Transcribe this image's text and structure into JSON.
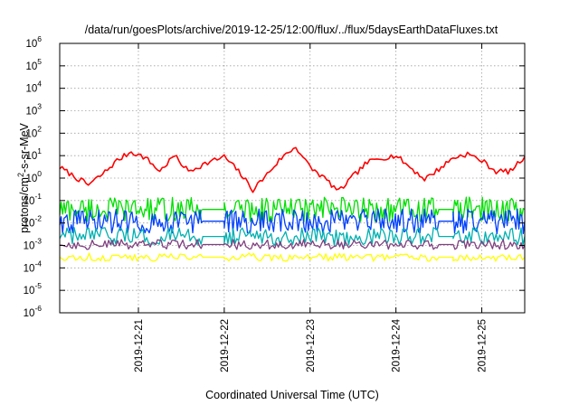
{
  "chart_data": {
    "type": "line",
    "title": "/data/run/goesPlots/archive/2019-12-25/12:00/flux/../flux/5daysEarthDataFluxes.txt",
    "xlabel": "Coordinated Universal Time (UTC)",
    "ylabel": "protons/cm2-s-sr-MeV",
    "ylabel_parts": {
      "pre": "protons/cm",
      "sup": "2",
      "post": "-s-sr-MeV"
    },
    "yscale": "log",
    "ylim": [
      1e-06,
      1000000.0
    ],
    "yticks": [
      {
        "v": 1000000.0,
        "base": "10",
        "exp": "6"
      },
      {
        "v": 100000.0,
        "base": "10",
        "exp": "5"
      },
      {
        "v": 10000.0,
        "base": "10",
        "exp": "4"
      },
      {
        "v": 1000.0,
        "base": "10",
        "exp": "3"
      },
      {
        "v": 100.0,
        "base": "10",
        "exp": "2"
      },
      {
        "v": 10.0,
        "base": "10",
        "exp": "1"
      },
      {
        "v": 1.0,
        "base": "10",
        "exp": "0"
      },
      {
        "v": 0.1,
        "base": "10",
        "exp": "-1"
      },
      {
        "v": 0.01,
        "base": "10",
        "exp": "-2"
      },
      {
        "v": 0.001,
        "base": "10",
        "exp": "-3"
      },
      {
        "v": 0.0001,
        "base": "10",
        "exp": "-4"
      },
      {
        "v": 1e-05,
        "base": "10",
        "exp": "-5"
      },
      {
        "v": 1e-06,
        "base": "10",
        "exp": "-6"
      }
    ],
    "xlim": [
      "2019-12-20T02:00",
      "2019-12-25T12:00"
    ],
    "xticks": [
      "2019-12-21",
      "2019-12-22",
      "2019-12-23",
      "2019-12-24",
      "2019-12-25"
    ],
    "grid": true,
    "legend": "none",
    "series": [
      {
        "color": "#ff0000",
        "x": [
          "2019-12-20T02:00",
          "2019-12-20T06:00",
          "2019-12-20T10:00",
          "2019-12-20T14:00",
          "2019-12-20T18:00",
          "2019-12-20T22:00",
          "2019-12-21T02:00",
          "2019-12-21T06:00",
          "2019-12-21T10:00",
          "2019-12-21T14:00",
          "2019-12-21T18:00",
          "2019-12-22T00:00",
          "2019-12-22T04:00",
          "2019-12-22T08:00",
          "2019-12-22T12:00",
          "2019-12-22T16:00",
          "2019-12-22T20:00",
          "2019-12-23T00:00",
          "2019-12-23T04:00",
          "2019-12-23T08:00",
          "2019-12-23T12:00",
          "2019-12-23T16:00",
          "2019-12-23T20:00",
          "2019-12-24T00:00",
          "2019-12-24T04:00",
          "2019-12-24T08:00",
          "2019-12-24T12:00",
          "2019-12-24T16:00",
          "2019-12-24T20:00",
          "2019-12-25T00:00",
          "2019-12-25T04:00",
          "2019-12-25T08:00",
          "2019-12-25T12:00"
        ],
        "y": [
          3,
          1.2,
          0.5,
          1.5,
          6,
          15,
          8,
          2,
          10,
          2,
          4,
          9,
          2,
          0.3,
          1.5,
          8,
          25,
          3,
          1,
          0.25,
          1.2,
          5,
          8,
          10,
          3,
          0.9,
          2.5,
          8,
          12,
          6,
          2,
          2,
          9
        ]
      },
      {
        "color": "#00e000",
        "x": [
          "2019-12-20T02:00",
          "2019-12-21T18:00",
          "2019-12-22T00:00",
          "2019-12-24T12:00",
          "2019-12-24T16:00",
          "2019-12-25T12:00"
        ],
        "y": [
          0.04,
          0.04,
          0.04,
          0.04,
          0.04,
          0.04
        ]
      },
      {
        "color": "#0040ff",
        "x": [
          "2019-12-20T02:00",
          "2019-12-21T18:00",
          "2019-12-22T00:00",
          "2019-12-24T12:00",
          "2019-12-24T16:00",
          "2019-12-25T12:00"
        ],
        "y": [
          0.012,
          0.012,
          0.012,
          0.012,
          0.012,
          0.012
        ]
      },
      {
        "color": "#00b0b0",
        "x": [
          "2019-12-20T02:00",
          "2019-12-21T18:00",
          "2019-12-22T00:00",
          "2019-12-24T12:00",
          "2019-12-24T16:00",
          "2019-12-25T12:00"
        ],
        "y": [
          0.0025,
          0.0025,
          0.0025,
          0.0025,
          0.0025,
          0.0025
        ]
      },
      {
        "color": "#804080",
        "x": [
          "2019-12-20T02:00",
          "2019-12-21T18:00",
          "2019-12-22T00:00",
          "2019-12-24T12:00",
          "2019-12-24T16:00",
          "2019-12-25T12:00"
        ],
        "y": [
          0.0011,
          0.0011,
          0.0011,
          0.0011,
          0.0011,
          0.0011
        ]
      },
      {
        "color": "#ffff00",
        "x": [
          "2019-12-20T02:00",
          "2019-12-21T18:00",
          "2019-12-22T00:00",
          "2019-12-24T12:00",
          "2019-12-24T16:00",
          "2019-12-25T12:00"
        ],
        "y": [
          0.0003,
          0.0003,
          0.0003,
          0.0003,
          0.0003,
          0.0003
        ]
      }
    ]
  }
}
